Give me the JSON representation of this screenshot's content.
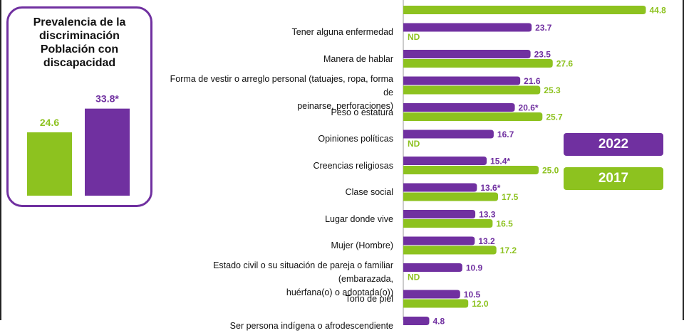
{
  "inset": {
    "title_lines": [
      "Prevalencia de la",
      "discriminación",
      "Población con",
      "discapacidad"
    ],
    "bars": [
      {
        "year": "2017",
        "value": 24.6,
        "label": "24.6",
        "color": "#8dc21f"
      },
      {
        "year": "2022",
        "value": 33.8,
        "label": "33.8*",
        "color": "#7030a0"
      }
    ]
  },
  "legend": {
    "items": [
      {
        "label": "2022",
        "color": "#7030a0"
      },
      {
        "label": "2017",
        "color": "#8dc21f"
      }
    ]
  },
  "chart_data": {
    "type": "bar",
    "orientation": "horizontal",
    "colors": {
      "2022": "#7030a0",
      "2017": "#8dc21f"
    },
    "categories": [
      "",
      "Tener alguna enfermedad",
      "Manera de hablar",
      "Forma de vestir o arreglo personal (tatuajes, ropa, forma de peinarse, perforaciones)",
      "Peso o estatura",
      "Opiniones políticas",
      "Creencias religiosas",
      "Clase social",
      "Lugar donde vive",
      "Mujer (Hombre)",
      "Estado civil o su situación de pareja o familiar (embarazada, huérfana(o) o adoptada(o))",
      "Tono de piel",
      "Ser persona indígena o afrodescendiente"
    ],
    "category_lines": [
      [],
      [
        "Tener alguna enfermedad"
      ],
      [
        "Manera de hablar"
      ],
      [
        "Forma de vestir o arreglo personal (tatuajes, ropa, forma de",
        "peinarse, perforaciones)"
      ],
      [
        "Peso o estatura"
      ],
      [
        "Opiniones políticas"
      ],
      [
        "Creencias religiosas"
      ],
      [
        "Clase social"
      ],
      [
        "Lugar donde vive"
      ],
      [
        "Mujer (Hombre)"
      ],
      [
        "Estado civil o su situación de pareja o familiar (embarazada,",
        "huérfana(o) o adoptada(o))"
      ],
      [
        "Tono de piel"
      ],
      [
        "Ser persona indígena o afrodescendiente"
      ]
    ],
    "series": [
      {
        "name": "2022",
        "values": [
          null,
          23.7,
          23.5,
          21.6,
          20.6,
          16.7,
          15.4,
          13.6,
          13.3,
          13.2,
          10.9,
          10.5,
          4.8
        ],
        "labels": [
          "",
          "23.7",
          "23.5",
          "21.6",
          "20.6*",
          "16.7",
          "15.4*",
          "13.6*",
          "13.3",
          "13.2",
          "10.9",
          "10.5",
          "4.8"
        ]
      },
      {
        "name": "2017",
        "values": [
          44.8,
          null,
          27.6,
          25.3,
          25.7,
          null,
          25.0,
          17.5,
          16.5,
          17.2,
          null,
          12.0,
          null
        ],
        "labels": [
          "44.8",
          "ND",
          "27.6",
          "25.3",
          "25.7",
          "ND",
          "25.0",
          "17.5",
          "16.5",
          "17.2",
          "ND",
          "12.0",
          ""
        ]
      }
    ]
  }
}
